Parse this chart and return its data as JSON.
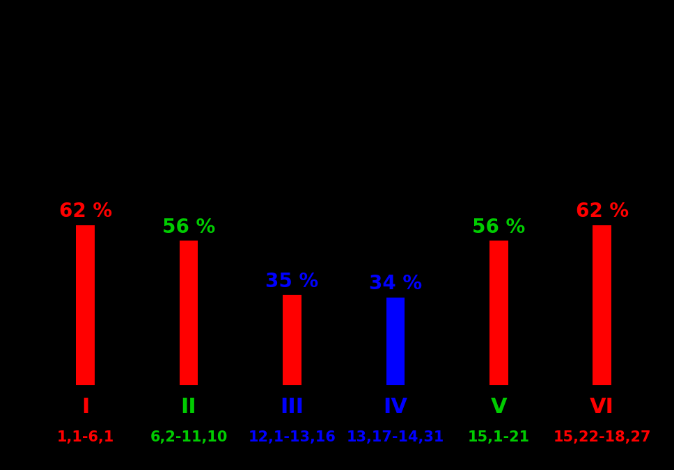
{
  "categories": [
    "I",
    "II",
    "III",
    "IV",
    "V",
    "VI"
  ],
  "subtitles": [
    "1,1-6,1",
    "6,2-11,10",
    "12,1-13,16",
    "13,17-14,31",
    "15,1-21",
    "15,22-18,27"
  ],
  "values": [
    62,
    56,
    35,
    34,
    56,
    62
  ],
  "bar_colors": [
    "#ff0000",
    "#ff0000",
    "#ff0000",
    "#0000ff",
    "#ff0000",
    "#ff0000"
  ],
  "label_colors": [
    "#ff0000",
    "#00cc00",
    "#0000ff",
    "#0000ff",
    "#00cc00",
    "#ff0000"
  ],
  "roman_colors": [
    "#ff0000",
    "#00cc00",
    "#0000ff",
    "#0000ff",
    "#00cc00",
    "#ff0000"
  ],
  "subtitle_colors": [
    "#ff0000",
    "#00cc00",
    "#0000ff",
    "#0000ff",
    "#00cc00",
    "#ff0000"
  ],
  "background_color": "#000000",
  "bar_width": 0.18,
  "ylim": [
    0,
    100
  ],
  "label_fontsize": 20,
  "roman_fontsize": 22,
  "subtitle_fontsize": 15
}
